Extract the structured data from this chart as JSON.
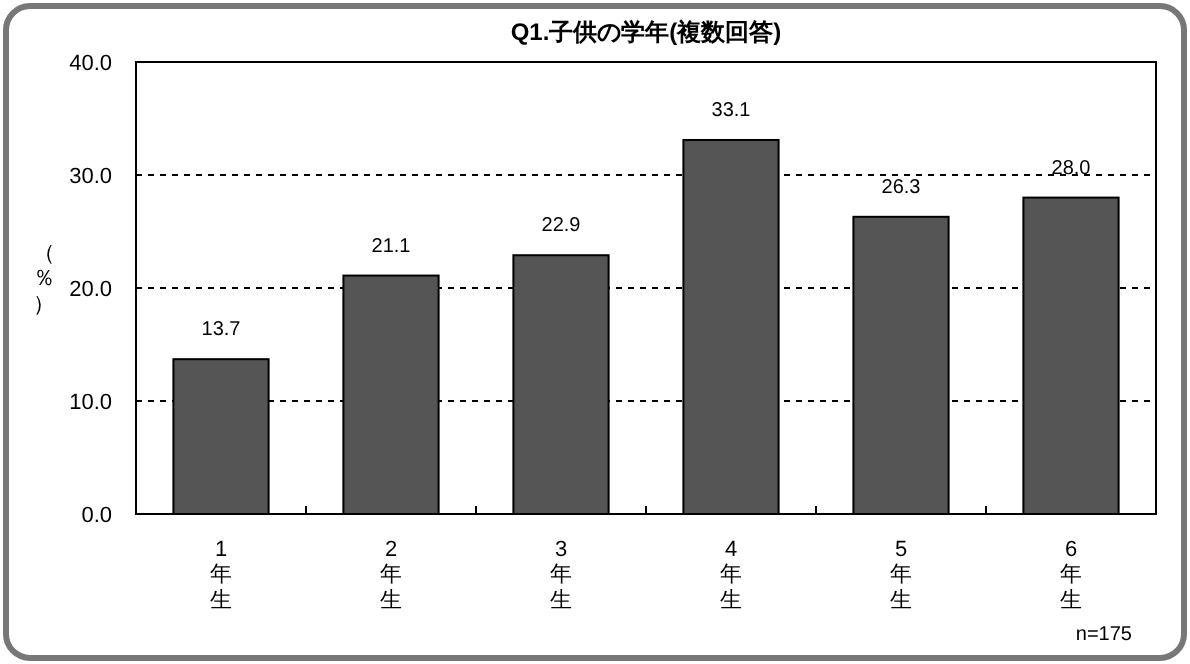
{
  "chart_data": {
    "type": "bar",
    "title": "Q1.子供の学年(複数回答)",
    "ylabel": "（％）",
    "categories": [
      "1年生",
      "2年生",
      "3年生",
      "4年生",
      "5年生",
      "6年生"
    ],
    "values": [
      13.7,
      21.1,
      22.9,
      33.1,
      26.3,
      28.0
    ],
    "color": "#555555",
    "ylim": [
      0,
      40
    ],
    "yticks": [
      {
        "value": 0,
        "label": "0.0"
      },
      {
        "value": 10,
        "label": "10.0"
      },
      {
        "value": 20,
        "label": "20.0"
      },
      {
        "value": 30,
        "label": "30.0"
      },
      {
        "value": 40,
        "label": "40.0"
      }
    ],
    "value_labels": [
      "13.7",
      "21.1",
      "22.9",
      "33.1",
      "26.3",
      "28.0"
    ],
    "grid": "y",
    "line_style": "dashed",
    "annotations": [
      "n=175"
    ]
  }
}
